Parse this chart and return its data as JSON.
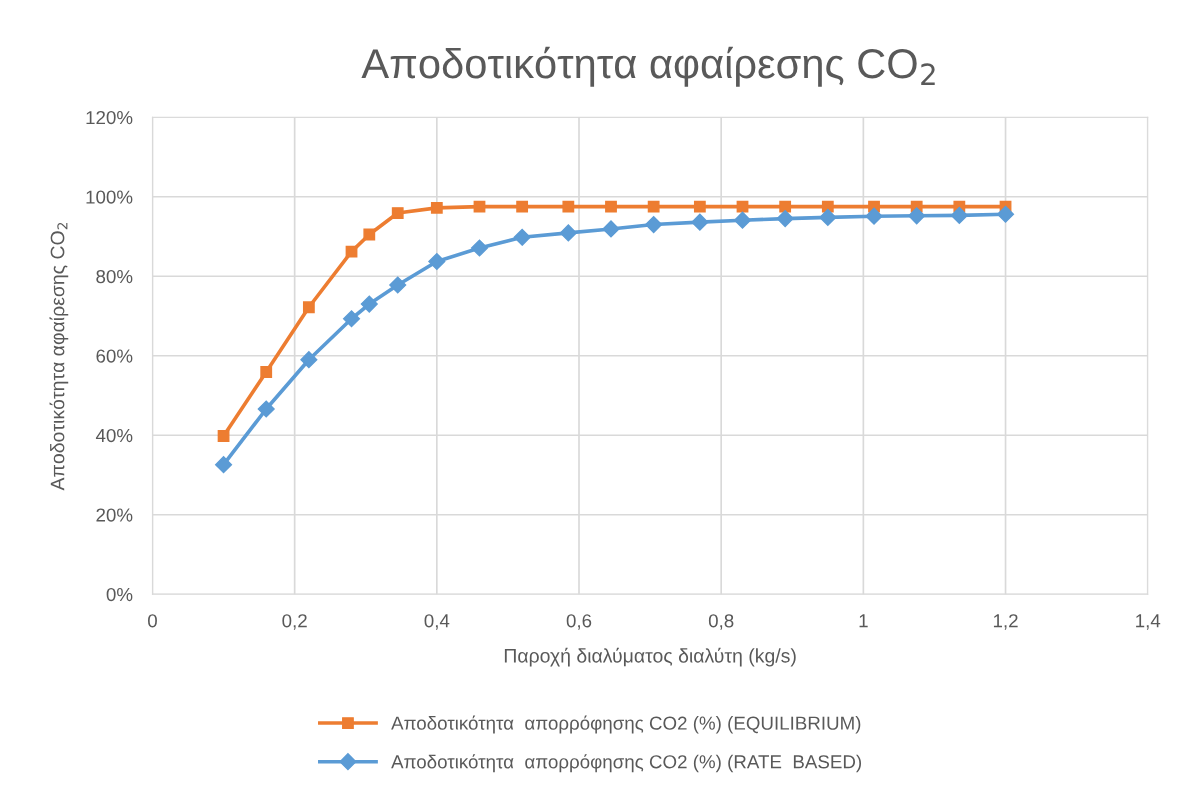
{
  "chart_data": {
    "type": "line",
    "title": "Αποδοτικότητα αφαίρεσης CO$_{2}$",
    "xlabel": "Παροχή διαλύματος διαλύτη (kg/s)",
    "ylabel": "Αποδοτικότητα αφαίρεσης CO$_{2}$",
    "x": [
      0.1,
      0.16,
      0.22,
      0.28,
      0.305,
      0.345,
      0.4,
      0.46,
      0.52,
      0.585,
      0.645,
      0.705,
      0.77,
      0.83,
      0.89,
      0.95,
      1.015,
      1.075,
      1.135,
      1.2
    ],
    "series": [
      {
        "name": "Αποδοτικότητα  απορρόφησης CO2 (%) (EQUILIBRIUM)",
        "color": "#ed7d31",
        "marker": "square",
        "values": [
          39.8,
          55.9,
          72.2,
          86.2,
          90.5,
          95.9,
          97.2,
          97.5,
          97.5,
          97.5,
          97.5,
          97.5,
          97.5,
          97.5,
          97.5,
          97.5,
          97.5,
          97.5,
          97.5,
          97.5
        ]
      },
      {
        "name": "Αποδοτικότητα  απορρόφησης CO2 (%) (RATE  BASED)",
        "color": "#5b9bd5",
        "marker": "diamond",
        "values": [
          32.6,
          46.6,
          59.0,
          69.3,
          73.0,
          77.8,
          83.7,
          87.1,
          89.8,
          90.9,
          91.9,
          93.0,
          93.6,
          94.1,
          94.5,
          94.8,
          95.1,
          95.2,
          95.3,
          95.6
        ]
      }
    ],
    "xlim": [
      0,
      1.4
    ],
    "xticks": [
      {
        "value": 0,
        "label": "0"
      },
      {
        "value": 0.2,
        "label": "0,2"
      },
      {
        "value": 0.4,
        "label": "0,4"
      },
      {
        "value": 0.6,
        "label": "0,6"
      },
      {
        "value": 0.8,
        "label": "0,8"
      },
      {
        "value": 1,
        "label": "1"
      },
      {
        "value": 1.2,
        "label": "1,2"
      },
      {
        "value": 1.4,
        "label": "1,4"
      }
    ],
    "ylim": [
      0,
      120
    ],
    "yticks": [
      {
        "value": 0,
        "label": "0%"
      },
      {
        "value": 20,
        "label": "20%"
      },
      {
        "value": 40,
        "label": "40%"
      },
      {
        "value": 60,
        "label": "60%"
      },
      {
        "value": 80,
        "label": "80%"
      },
      {
        "value": 100,
        "label": "100%"
      },
      {
        "value": 120,
        "label": "120%"
      }
    ],
    "grid": true,
    "legend": "bottom",
    "line_style": "solid"
  }
}
